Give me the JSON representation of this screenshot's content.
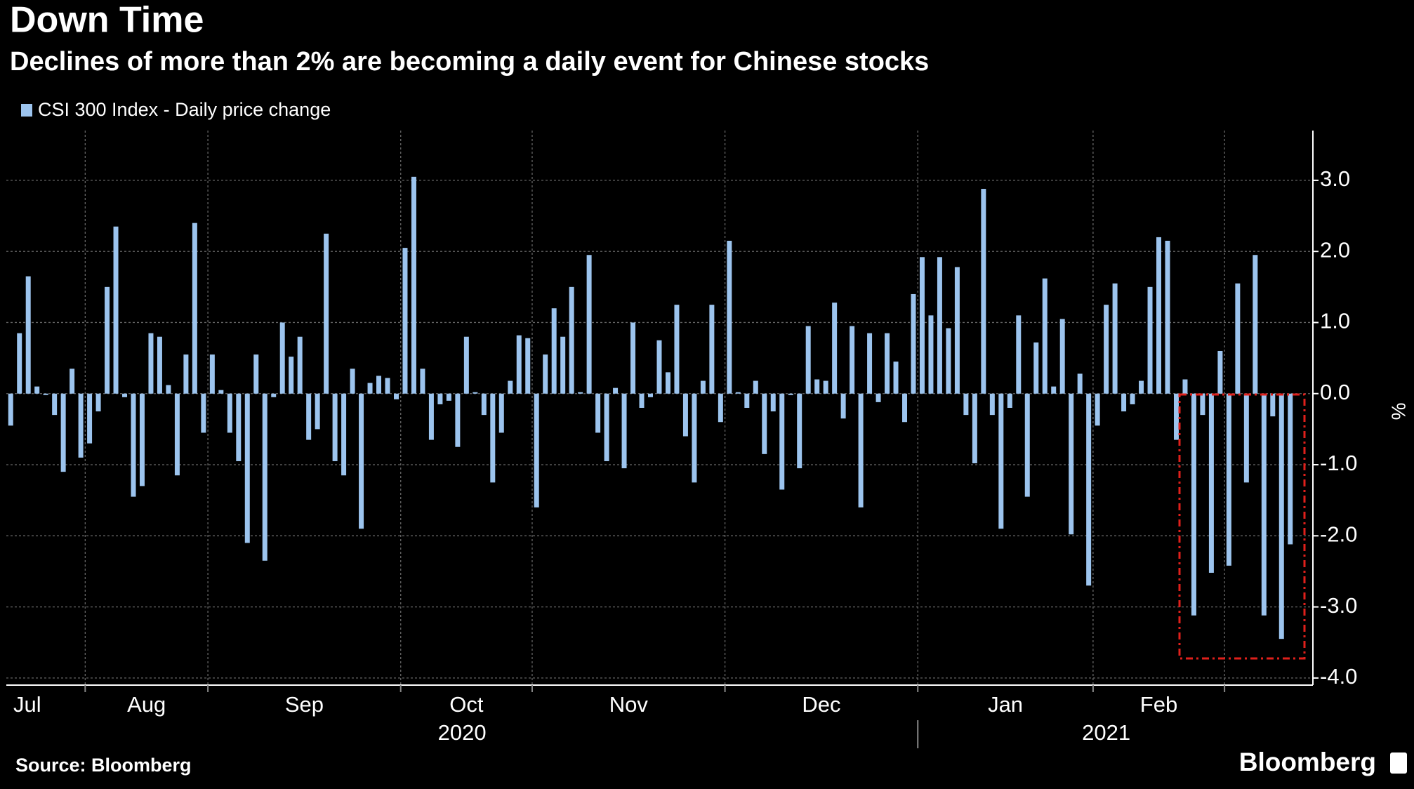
{
  "chart_data": {
    "type": "bar",
    "title": "Down Time",
    "subtitle": "Declines of more than 2% are becoming a daily event for Chinese stocks",
    "source": "Source: Bloomberg",
    "brand": "Bloomberg",
    "y_label": "%",
    "ylim": [
      -4.1,
      3.7
    ],
    "yticks": [
      {
        "value": -4,
        "label": "-4.0"
      },
      {
        "value": -3,
        "label": "-3.0"
      },
      {
        "value": -2,
        "label": "-2.0"
      },
      {
        "value": -1,
        "label": "-1.0"
      },
      {
        "value": 0,
        "label": "0.0"
      },
      {
        "value": 1,
        "label": "1.0"
      },
      {
        "value": 2,
        "label": "2.0"
      },
      {
        "value": 3,
        "label": "3.0"
      }
    ],
    "grid": true,
    "xticks": [
      9,
      23,
      45,
      60,
      82,
      104,
      124,
      139
    ],
    "years": [
      {
        "start": 0,
        "label": "2020"
      },
      {
        "start": 104,
        "label": "2021"
      }
    ],
    "categories": [
      "Jul",
      null,
      null,
      null,
      null,
      null,
      null,
      null,
      null,
      "Aug",
      null,
      null,
      null,
      null,
      null,
      null,
      null,
      null,
      null,
      null,
      null,
      null,
      null,
      "Sep",
      null,
      null,
      null,
      null,
      null,
      null,
      null,
      null,
      null,
      null,
      null,
      null,
      null,
      null,
      null,
      null,
      null,
      null,
      null,
      null,
      null,
      "Oct",
      null,
      null,
      null,
      null,
      null,
      null,
      null,
      null,
      null,
      null,
      null,
      null,
      null,
      null,
      "Nov",
      null,
      null,
      null,
      null,
      null,
      null,
      null,
      null,
      null,
      null,
      null,
      null,
      null,
      null,
      null,
      null,
      null,
      null,
      null,
      null,
      null,
      "Dec",
      null,
      null,
      null,
      null,
      null,
      null,
      null,
      null,
      null,
      null,
      null,
      null,
      null,
      null,
      null,
      null,
      null,
      null,
      null,
      null,
      null,
      "Jan",
      null,
      null,
      null,
      null,
      null,
      null,
      null,
      null,
      null,
      null,
      null,
      null,
      null,
      null,
      null,
      null,
      null,
      null,
      null,
      "Feb",
      null,
      null,
      null,
      null,
      null,
      null,
      null,
      null,
      null,
      null,
      null,
      null,
      null,
      null,
      null,
      null,
      null,
      null,
      null,
      null,
      null,
      null
    ],
    "series": [
      {
        "name": "CSI 300 Index - Daily price change",
        "color": "#9cc4ee",
        "values": [
          -0.45,
          0.85,
          1.65,
          0.1,
          -0.02,
          -0.3,
          -1.1,
          0.35,
          -0.9,
          -0.7,
          -0.25,
          1.5,
          2.35,
          -0.05,
          -1.45,
          -1.3,
          0.85,
          0.8,
          0.12,
          -1.15,
          0.55,
          2.4,
          -0.55,
          0.55,
          0.05,
          -0.55,
          -0.95,
          -2.1,
          0.55,
          -2.35,
          -0.05,
          1.0,
          0.52,
          0.8,
          -0.65,
          -0.5,
          2.25,
          -0.95,
          -1.15,
          0.35,
          -1.9,
          0.15,
          0.25,
          0.22,
          -0.08,
          2.05,
          3.05,
          0.35,
          -0.65,
          -0.15,
          -0.1,
          -0.75,
          0.8,
          0.02,
          -0.3,
          -1.25,
          -0.55,
          0.18,
          0.82,
          0.78,
          -1.6,
          0.55,
          1.2,
          0.8,
          1.5,
          0.02,
          1.95,
          -0.55,
          -0.95,
          0.08,
          -1.05,
          1.0,
          -0.2,
          -0.05,
          0.75,
          0.3,
          1.25,
          -0.6,
          -1.25,
          0.18,
          1.25,
          -0.4,
          2.15,
          0.02,
          -0.2,
          0.18,
          -0.85,
          -0.25,
          -1.35,
          -0.02,
          -1.05,
          0.95,
          0.2,
          0.18,
          1.28,
          -0.35,
          0.95,
          -1.6,
          0.85,
          -0.12,
          0.85,
          0.45,
          -0.4,
          1.4,
          1.92,
          1.1,
          1.92,
          0.92,
          1.78,
          -0.3,
          -0.98,
          2.88,
          -0.3,
          -1.9,
          -0.2,
          1.1,
          -1.45,
          0.72,
          1.62,
          0.1,
          1.05,
          -1.98,
          0.28,
          -2.7,
          -0.45,
          1.25,
          1.55,
          -0.25,
          -0.15,
          0.18,
          1.5,
          2.2,
          2.15,
          -0.65,
          0.2,
          -3.12,
          -0.3,
          -2.52,
          0.6,
          -2.42,
          1.55,
          -1.25,
          1.95,
          -3.12,
          -0.32,
          -3.45,
          -2.12
        ]
      }
    ]
  }
}
